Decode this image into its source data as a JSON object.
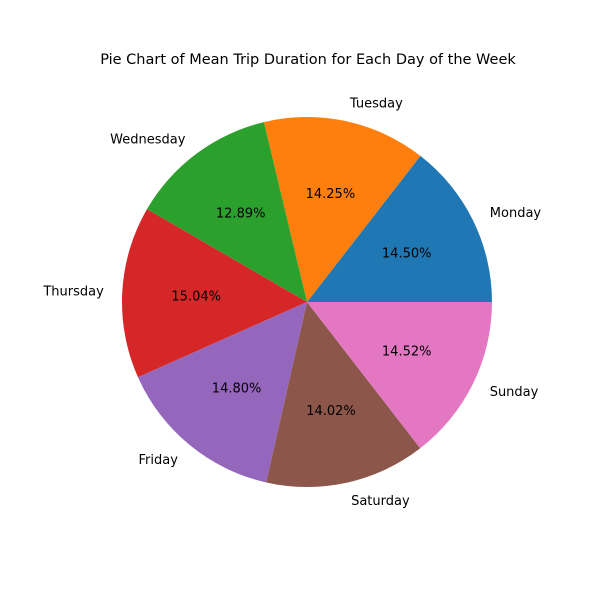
{
  "chart_data": {
    "type": "pie",
    "title": "Pie Chart of Mean Trip Duration for Each Day of the Week",
    "start_angle_deg": 0,
    "direction": "counterclockwise",
    "slices": [
      {
        "label": "Monday",
        "value": 14.5,
        "pct_label": "14.50%",
        "color": "#1f77b4"
      },
      {
        "label": "Tuesday",
        "value": 14.25,
        "pct_label": "14.25%",
        "color": "#ff7f0e"
      },
      {
        "label": "Wednesday",
        "value": 12.89,
        "pct_label": "12.89%",
        "color": "#2ca02c"
      },
      {
        "label": "Thursday",
        "value": 15.04,
        "pct_label": "15.04%",
        "color": "#d62728"
      },
      {
        "label": "Friday",
        "value": 14.8,
        "pct_label": "14.80%",
        "color": "#9467bd"
      },
      {
        "label": "Saturday",
        "value": 14.02,
        "pct_label": "14.02%",
        "color": "#8c564b"
      },
      {
        "label": "Sunday",
        "value": 14.52,
        "pct_label": "14.52%",
        "color": "#e377c2"
      }
    ]
  }
}
